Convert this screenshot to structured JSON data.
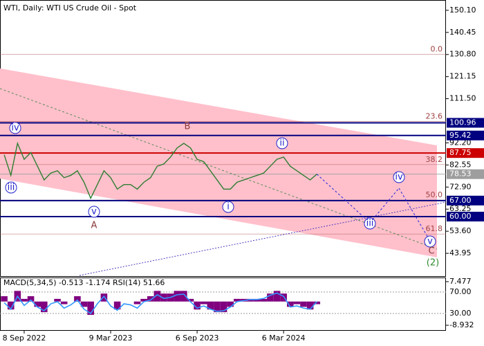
{
  "chart_data": {
    "type": "line",
    "title": "WTI, Daily:  WTI US Crude Oil - Spot",
    "categories": [
      null,
      null,
      null,
      "8 Sep 2022",
      null,
      null,
      null,
      null,
      null,
      null,
      null,
      null,
      null,
      null,
      null,
      null,
      "9 Mar 2023",
      null,
      null,
      null,
      null,
      null,
      null,
      null,
      null,
      null,
      null,
      null,
      null,
      "6 Sep 2023",
      null,
      null,
      null,
      null,
      null,
      null,
      null,
      null,
      null,
      null,
      null,
      null,
      "6 Mar 2024",
      null,
      null,
      null,
      null,
      null
    ],
    "series": [
      {
        "name": "WTI",
        "color": "#2e7d32",
        "values": [
          87,
          78,
          92,
          85,
          88,
          82,
          76,
          79,
          80,
          77,
          78,
          80,
          75,
          68,
          74,
          80,
          77,
          72,
          74,
          74,
          72,
          75,
          77,
          82,
          83,
          86,
          90,
          92,
          90,
          85,
          84,
          80,
          76,
          72,
          72,
          75,
          76,
          77,
          78,
          79,
          82,
          85,
          86,
          82,
          80,
          78,
          76,
          78.53
        ]
      }
    ],
    "ylim": [
      33.7,
      154.6
    ],
    "yticks": [
      {
        "value": 150.1,
        "label": "150.10"
      },
      140.45,
      {
        "value": 130.8,
        "label": "130.80"
      },
      121.15,
      {
        "value": 111.5,
        "label": "111.50"
      },
      {
        "value": 92.2,
        "label": "92.20"
      },
      82.55,
      {
        "value": 72.9,
        "label": "72.90"
      },
      63.25,
      {
        "value": 53.6,
        "label": "53.60"
      },
      43.95
    ],
    "levels": [
      {
        "value": 100.96,
        "color": "#000080"
      },
      {
        "value": 95.42,
        "color": "#000080"
      },
      {
        "value": 87.75,
        "color": "#cc0000"
      },
      {
        "value": 78.53,
        "color": "#9e9e9e"
      },
      {
        "value": 67,
        "label": "67.00",
        "color": "#000080"
      },
      {
        "value": 60,
        "label": "60.00",
        "color": "#000080"
      }
    ],
    "fib_levels": [
      {
        "label": "0.0",
        "price": 130.8
      },
      {
        "label": "23.6",
        "price": 101.6
      },
      {
        "label": "38.2",
        "price": 82.7
      },
      {
        "label": "50.0",
        "price": 67.2
      },
      {
        "label": "61.8",
        "price": 52.4
      }
    ],
    "channel": {
      "upper": [
        124.7,
        91.1
      ],
      "lower": [
        76.6,
        42.2
      ]
    },
    "forecast": [
      57.3,
      72.4,
      49.4
    ],
    "waves": [
      "iv",
      "iii",
      "v",
      "A",
      "B",
      "i",
      "ii",
      "iii",
      "iv",
      "v",
      "C",
      "(2)"
    ],
    "indicator": {
      "title": "MACD(5,34,5) -0.513 -1.174 RSI(14) 51.66",
      "macd": {
        "name": "MACD",
        "color": "#800080",
        "values": [
          2,
          -3,
          4,
          1,
          2,
          -2,
          -4,
          0,
          1,
          -1,
          0,
          2,
          -2,
          -5,
          0,
          3,
          0,
          -3,
          0,
          0,
          -1,
          1,
          2,
          4,
          3,
          3,
          4,
          4,
          1,
          -3,
          -1,
          -3,
          -4,
          -4,
          -2,
          1,
          1,
          1,
          1,
          1,
          3,
          4,
          3,
          -2,
          -1,
          -2,
          -3,
          -1
        ]
      },
      "rsi": {
        "name": "RSI",
        "color": "#3399ff",
        "axis": "y2",
        "values": [
          50,
          38,
          62,
          45,
          55,
          42,
          35,
          48,
          52,
          40,
          46,
          55,
          38,
          30,
          48,
          62,
          44,
          36,
          48,
          46,
          40,
          52,
          55,
          65,
          58,
          60,
          65,
          66,
          52,
          40,
          44,
          38,
          34,
          35,
          42,
          52,
          54,
          56,
          56,
          58,
          64,
          68,
          62,
          42,
          44,
          40,
          38,
          52
        ]
      },
      "ylim": [
        -11,
        8.78
      ],
      "yticks": [
        7.477,
        -8.932
      ],
      "y2lim": [
        -2.3,
        95.8
      ],
      "y2ticks": [
        {
          "value": 70,
          "label": "70.00"
        },
        {
          "value": 30,
          "label": "30.00"
        }
      ]
    }
  }
}
